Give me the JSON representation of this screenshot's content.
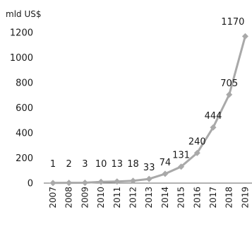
{
  "chart_data": {
    "type": "line",
    "unit_label": "mld US$",
    "title": "",
    "xlabel": "",
    "ylabel": "",
    "x": [
      "2007",
      "2008",
      "2009",
      "2010",
      "2011",
      "2012",
      "2013",
      "2014",
      "2015",
      "2016",
      "2017",
      "2018",
      "2019"
    ],
    "series": [
      {
        "values": [
          1,
          2,
          3,
          10,
          13,
          18,
          33,
          74,
          131,
          240,
          444,
          705,
          1170
        ],
        "color": "#a9a9a9",
        "marker": "diamond"
      }
    ],
    "data_labels": [
      "1",
      "2",
      "3",
      "10",
      "13",
      "18",
      "33",
      "74",
      "131",
      "240",
      "444",
      "705",
      "1170"
    ],
    "y_ticks": [
      "0",
      "200",
      "400",
      "600",
      "800",
      "1000",
      "1200"
    ],
    "ylim": [
      0,
      1200
    ],
    "grid": false,
    "legend": "none"
  }
}
